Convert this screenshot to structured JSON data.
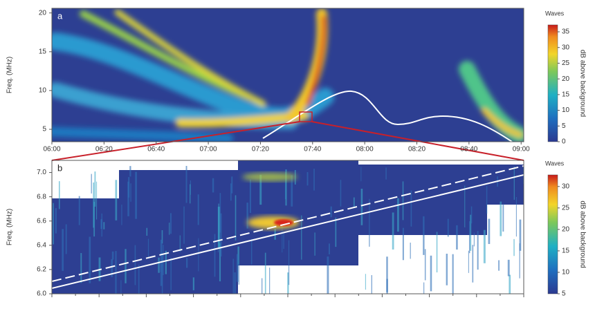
{
  "chart_data": [
    {
      "type": "heatmap",
      "panel_label": "a",
      "ylabel": "Freq. (MHz)",
      "colorbar_title": "Waves",
      "colorbar_label": "dB above background",
      "xlim": [
        360,
        541
      ],
      "xticks": [
        {
          "value": 360,
          "label": "06:00"
        },
        {
          "value": 380,
          "label": "06:20"
        },
        {
          "value": 400,
          "label": "06:40"
        },
        {
          "value": 420,
          "label": "07:00"
        },
        {
          "value": 440,
          "label": "07:20"
        },
        {
          "value": 460,
          "label": "07:40"
        },
        {
          "value": 480,
          "label": "08:00"
        },
        {
          "value": 500,
          "label": "08:20"
        },
        {
          "value": 520,
          "label": "08:40"
        },
        {
          "value": 540,
          "label": "09:00"
        }
      ],
      "ylim": [
        3.4,
        20.6
      ],
      "yticks": [
        5,
        10,
        15,
        20
      ],
      "clim": [
        0,
        37.2
      ],
      "cticks": [
        0,
        5,
        10,
        15,
        20,
        25,
        30,
        35
      ]
    },
    {
      "type": "heatmap",
      "panel_label": "b",
      "ylabel": "Freq. (MHz)",
      "colorbar_title": "Waves",
      "colorbar_label": "dB above background",
      "ylim": [
        6.0,
        7.1
      ],
      "yticks": [
        {
          "value": 6.0,
          "label": "6.0"
        },
        {
          "value": 6.2,
          "label": "6.2"
        },
        {
          "value": 6.4,
          "label": "6.4"
        },
        {
          "value": 6.6,
          "label": "6.6"
        },
        {
          "value": 6.8,
          "label": "6.8"
        },
        {
          "value": 7.0,
          "label": "7.0"
        }
      ],
      "clim": [
        5,
        32.7
      ],
      "cticks": [
        5,
        10,
        15,
        20,
        25,
        30
      ]
    }
  ]
}
